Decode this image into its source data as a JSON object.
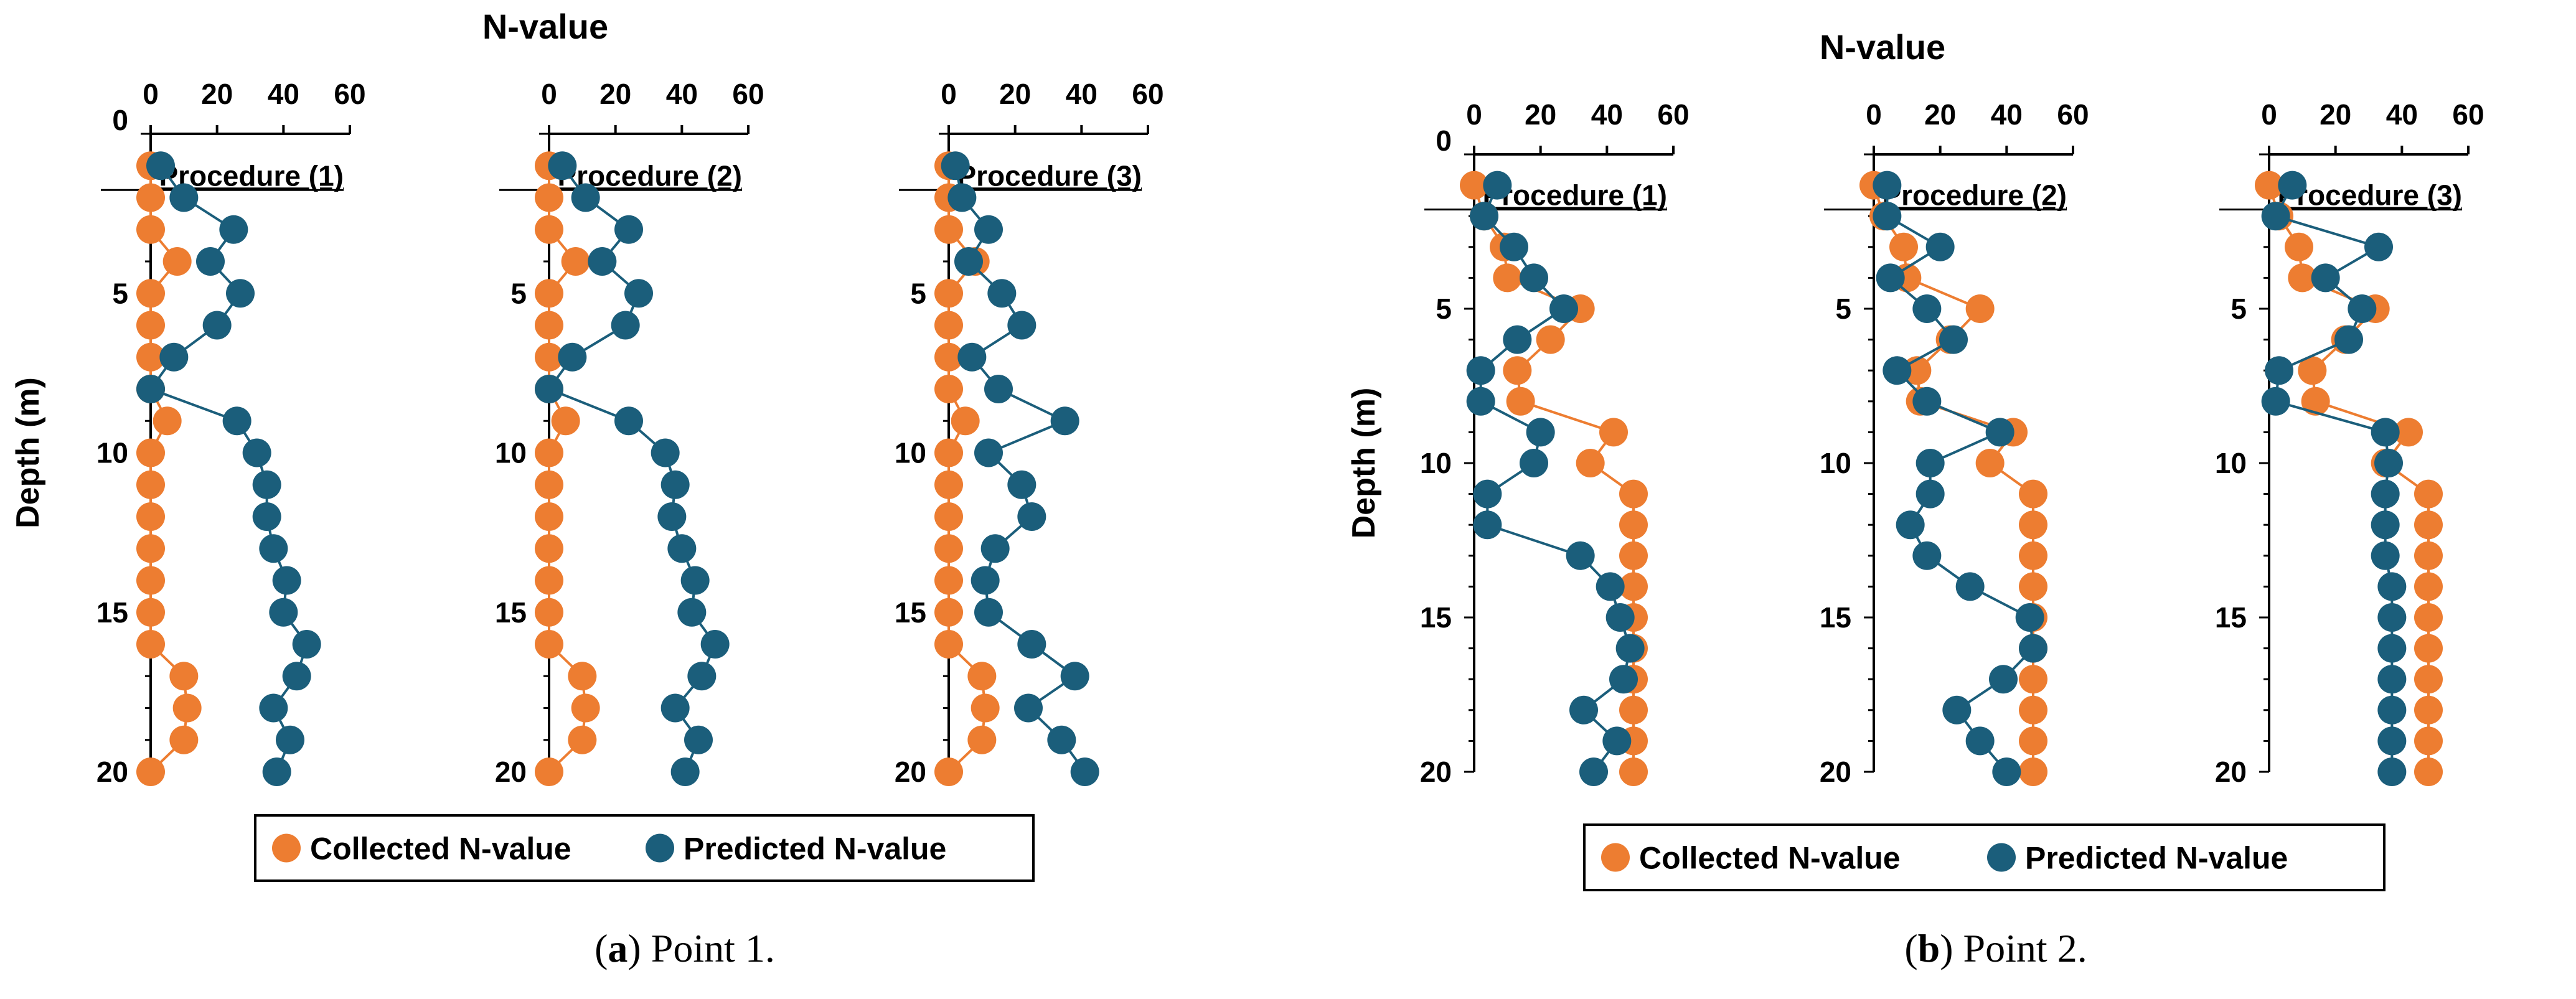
{
  "colors": {
    "collected": "#ED7D31",
    "predicted": "#1B5E7B",
    "axis": "#000000"
  },
  "chart_data": [
    {
      "title": "N-value",
      "ylabel": "Depth (m)",
      "caption": {
        "label": "a",
        "text": ") Point 1.",
        "open": "("
      },
      "legend": {
        "collected": "Collected N-value",
        "predicted": "Predicted N-value"
      },
      "panels": [
        {
          "type": "line",
          "name": "Procedure (1)",
          "xlim": [
            0,
            60
          ],
          "xticks": [
            "0",
            "20",
            "40",
            "60"
          ],
          "ylim": [
            0,
            20
          ],
          "yticks": [
            "0",
            "5",
            "10",
            "15",
            "20"
          ],
          "series": [
            {
              "name": "Collected N-value",
              "x": [
                0,
                0,
                0,
                8,
                0,
                0,
                0,
                0,
                5,
                0,
                0,
                0,
                0,
                0,
                0,
                0,
                10,
                11,
                10,
                0
              ],
              "y": [
                1,
                2,
                3,
                4,
                5,
                6,
                7,
                8,
                9,
                10,
                11,
                12,
                13,
                14,
                15,
                16,
                17,
                18,
                19,
                20
              ]
            },
            {
              "name": "Predicted N-value",
              "x": [
                3,
                10,
                25,
                18,
                27,
                20,
                7,
                0,
                26,
                32,
                35,
                35,
                37,
                41,
                40,
                47,
                44,
                37,
                42,
                38
              ],
              "y": [
                1,
                2,
                3,
                4,
                5,
                6,
                7,
                8,
                9,
                10,
                11,
                12,
                13,
                14,
                15,
                16,
                17,
                18,
                19,
                20
              ]
            }
          ]
        },
        {
          "type": "line",
          "name": "Procedure (2)",
          "xlim": [
            0,
            60
          ],
          "xticks": [
            "0",
            "20",
            "40",
            "60"
          ],
          "ylim": [
            0,
            20
          ],
          "yticks": [
            "5",
            "10",
            "15",
            "20"
          ],
          "series": [
            {
              "name": "Collected N-value",
              "x": [
                0,
                0,
                0,
                8,
                0,
                0,
                0,
                0,
                5,
                0,
                0,
                0,
                0,
                0,
                0,
                0,
                10,
                11,
                10,
                0
              ],
              "y": [
                1,
                2,
                3,
                4,
                5,
                6,
                7,
                8,
                9,
                10,
                11,
                12,
                13,
                14,
                15,
                16,
                17,
                18,
                19,
                20
              ]
            },
            {
              "name": "Predicted N-value",
              "x": [
                4,
                11,
                24,
                16,
                27,
                23,
                7,
                0,
                24,
                35,
                38,
                37,
                40,
                44,
                43,
                50,
                46,
                38,
                45,
                41
              ],
              "y": [
                1,
                2,
                3,
                4,
                5,
                6,
                7,
                8,
                9,
                10,
                11,
                12,
                13,
                14,
                15,
                16,
                17,
                18,
                19,
                20
              ]
            }
          ]
        },
        {
          "type": "line",
          "name": "Procedure (3)",
          "xlim": [
            0,
            60
          ],
          "xticks": [
            "0",
            "20",
            "40",
            "60"
          ],
          "ylim": [
            0,
            20
          ],
          "yticks": [
            "5",
            "10",
            "15",
            "20"
          ],
          "series": [
            {
              "name": "Collected N-value",
              "x": [
                0,
                0,
                0,
                8,
                0,
                0,
                0,
                0,
                5,
                0,
                0,
                0,
                0,
                0,
                0,
                0,
                10,
                11,
                10,
                0
              ],
              "y": [
                1,
                2,
                3,
                4,
                5,
                6,
                7,
                8,
                9,
                10,
                11,
                12,
                13,
                14,
                15,
                16,
                17,
                18,
                19,
                20
              ]
            },
            {
              "name": "Predicted N-value",
              "x": [
                2,
                4,
                12,
                6,
                16,
                22,
                7,
                15,
                35,
                12,
                22,
                25,
                14,
                11,
                12,
                25,
                38,
                24,
                34,
                41
              ],
              "y": [
                1,
                2,
                3,
                4,
                5,
                6,
                7,
                8,
                9,
                10,
                11,
                12,
                13,
                14,
                15,
                16,
                17,
                18,
                19,
                20
              ]
            }
          ]
        }
      ]
    },
    {
      "title": "N-value",
      "ylabel": "Depth (m)",
      "caption": {
        "label": "b",
        "text": ") Point 2.",
        "open": "("
      },
      "legend": {
        "collected": "Collected N-value",
        "predicted": "Predicted N-value"
      },
      "panels": [
        {
          "type": "line",
          "name": "Procedure (1)",
          "xlim": [
            0,
            60
          ],
          "xticks": [
            "0",
            "20",
            "40",
            "60"
          ],
          "ylim": [
            0,
            20
          ],
          "yticks": [
            "0",
            "5",
            "10",
            "15",
            "20"
          ],
          "series": [
            {
              "name": "Collected N-value",
              "x": [
                0,
                3,
                9,
                10,
                32,
                23,
                13,
                14,
                42,
                35,
                48,
                48,
                48,
                48,
                48,
                48,
                48,
                48,
                48,
                48
              ],
              "y": [
                1,
                2,
                3,
                4,
                5,
                6,
                7,
                8,
                9,
                10,
                11,
                12,
                13,
                14,
                15,
                16,
                17,
                18,
                19,
                20
              ]
            },
            {
              "name": "Predicted N-value",
              "x": [
                7,
                3,
                12,
                18,
                27,
                13,
                2,
                2,
                20,
                18,
                4,
                4,
                32,
                41,
                44,
                47,
                45,
                33,
                43,
                36
              ],
              "y": [
                1,
                2,
                3,
                4,
                5,
                6,
                7,
                8,
                9,
                10,
                11,
                12,
                13,
                14,
                15,
                16,
                17,
                18,
                19,
                20
              ]
            }
          ]
        },
        {
          "type": "line",
          "name": "Procedure (2)",
          "xlim": [
            0,
            60
          ],
          "xticks": [
            "0",
            "20",
            "40",
            "60"
          ],
          "ylim": [
            0,
            20
          ],
          "yticks": [
            "5",
            "10",
            "15",
            "20"
          ],
          "series": [
            {
              "name": "Collected N-value",
              "x": [
                0,
                3,
                9,
                10,
                32,
                23,
                13,
                14,
                42,
                35,
                48,
                48,
                48,
                48,
                48,
                48,
                48,
                48,
                48,
                48
              ],
              "y": [
                1,
                2,
                3,
                4,
                5,
                6,
                7,
                8,
                9,
                10,
                11,
                12,
                13,
                14,
                15,
                16,
                17,
                18,
                19,
                20
              ]
            },
            {
              "name": "Predicted N-value",
              "x": [
                4,
                4,
                20,
                5,
                16,
                24,
                7,
                16,
                38,
                17,
                17,
                11,
                16,
                29,
                47,
                48,
                39,
                25,
                32,
                40
              ],
              "y": [
                1,
                2,
                3,
                4,
                5,
                6,
                7,
                8,
                9,
                10,
                11,
                12,
                13,
                14,
                15,
                16,
                17,
                18,
                19,
                20
              ]
            }
          ]
        },
        {
          "type": "line",
          "name": "Procedure (3)",
          "xlim": [
            0,
            60
          ],
          "xticks": [
            "0",
            "20",
            "40",
            "60"
          ],
          "ylim": [
            0,
            20
          ],
          "yticks": [
            "5",
            "10",
            "15",
            "20"
          ],
          "series": [
            {
              "name": "Collected N-value",
              "x": [
                0,
                3,
                9,
                10,
                32,
                23,
                13,
                14,
                42,
                35,
                48,
                48,
                48,
                48,
                48,
                48,
                48,
                48,
                48,
                48
              ],
              "y": [
                1,
                2,
                3,
                4,
                5,
                6,
                7,
                8,
                9,
                10,
                11,
                12,
                13,
                14,
                15,
                16,
                17,
                18,
                19,
                20
              ]
            },
            {
              "name": "Predicted N-value",
              "x": [
                7,
                2,
                33,
                17,
                28,
                24,
                3,
                2,
                35,
                36,
                35,
                35,
                35,
                37,
                37,
                37,
                37,
                37,
                37,
                37
              ],
              "y": [
                1,
                2,
                3,
                4,
                5,
                6,
                7,
                8,
                9,
                10,
                11,
                12,
                13,
                14,
                15,
                16,
                17,
                18,
                19,
                20
              ]
            }
          ]
        }
      ]
    }
  ]
}
